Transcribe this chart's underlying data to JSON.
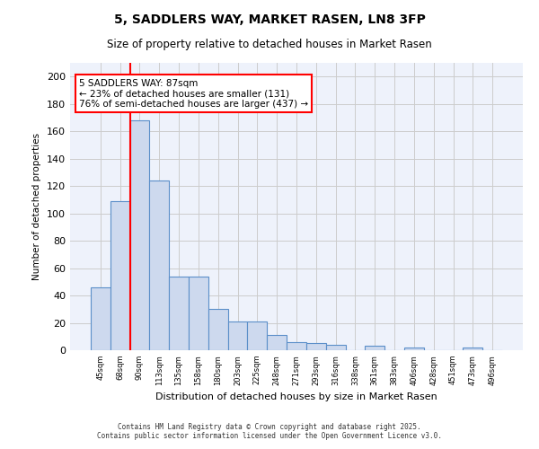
{
  "title": "5, SADDLERS WAY, MARKET RASEN, LN8 3FP",
  "subtitle": "Size of property relative to detached houses in Market Rasen",
  "xlabel": "Distribution of detached houses by size in Market Rasen",
  "ylabel": "Number of detached properties",
  "bar_values": [
    46,
    109,
    168,
    124,
    54,
    54,
    30,
    21,
    21,
    11,
    6,
    5,
    4,
    0,
    3,
    0,
    2,
    0,
    0,
    2
  ],
  "categories": [
    "45sqm",
    "68sqm",
    "90sqm",
    "113sqm",
    "135sqm",
    "158sqm",
    "180sqm",
    "203sqm",
    "225sqm",
    "248sqm",
    "271sqm",
    "293sqm",
    "316sqm",
    "338sqm",
    "361sqm",
    "383sqm",
    "406sqm",
    "428sqm",
    "451sqm",
    "473sqm",
    "496sqm"
  ],
  "bar_color": "#cdd9ee",
  "bar_edge_color": "#5b8fc9",
  "vline_color": "red",
  "vline_pos": 1.5,
  "annotation_text": "5 SADDLERS WAY: 87sqm\n← 23% of detached houses are smaller (131)\n76% of semi-detached houses are larger (437) →",
  "annotation_box_color": "white",
  "annotation_box_edge": "red",
  "ylim": [
    0,
    210
  ],
  "yticks": [
    0,
    20,
    40,
    60,
    80,
    100,
    120,
    140,
    160,
    180,
    200
  ],
  "grid_color": "#cccccc",
  "background_color": "#eef2fb",
  "footer_line1": "Contains HM Land Registry data © Crown copyright and database right 2025.",
  "footer_line2": "Contains public sector information licensed under the Open Government Licence v3.0."
}
